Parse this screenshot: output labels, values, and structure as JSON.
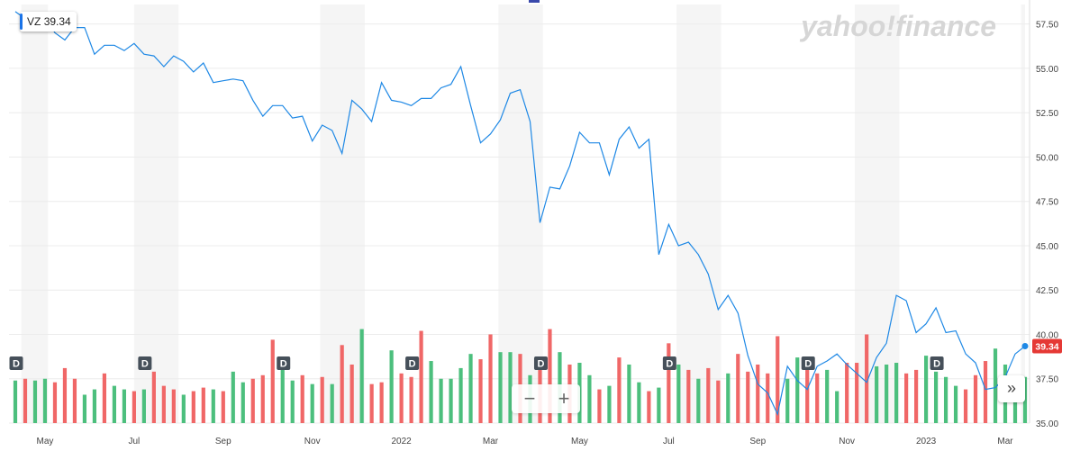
{
  "ticker": {
    "symbol": "VZ",
    "value": "39.34"
  },
  "watermark": "yahoo!finance",
  "last_price_label": "39.34",
  "controls": {
    "zoom_out": "−",
    "zoom_in": "+",
    "scroll": "»"
  },
  "dividend_marker": "D",
  "colors": {
    "line": "#1e88e5",
    "volume_up": "#4cbf7d",
    "volume_down": "#f06767",
    "price_tag": "#e53935",
    "band": "#f5f5f5"
  },
  "chart_data": {
    "type": "line",
    "title": "",
    "xlabel": "",
    "ylabel": "",
    "ylim": [
      35.0,
      58.6
    ],
    "grid": true,
    "y_ticks": [
      "57.50",
      "55.00",
      "52.50",
      "50.00",
      "47.50",
      "45.00",
      "42.50",
      "40.00",
      "37.50",
      "35.00"
    ],
    "y_tick_values": [
      57.5,
      55.0,
      52.5,
      50.0,
      47.5,
      45.0,
      42.5,
      40.0,
      37.5,
      35.0
    ],
    "x_ticks": [
      "May",
      "Jul",
      "Sep",
      "Nov",
      "2022",
      "Mar",
      "May",
      "Jul",
      "Sep",
      "Nov",
      "2023",
      "Mar"
    ],
    "x_tick_index": [
      3,
      12,
      21,
      30,
      39,
      48,
      57,
      66,
      75,
      84,
      92,
      100
    ],
    "series": [
      {
        "values": [
          58.2,
          57.8,
          58.1,
          57.9,
          57.0,
          56.6,
          57.3,
          57.3,
          55.8,
          56.3,
          56.3,
          56.0,
          56.4,
          55.8,
          55.7,
          55.1,
          55.7,
          55.4,
          54.8,
          55.3,
          54.2,
          54.3,
          54.4,
          54.3,
          53.2,
          52.3,
          52.9,
          52.9,
          52.2,
          52.3,
          50.9,
          51.8,
          51.5,
          50.2,
          53.2,
          52.7,
          52.0,
          54.2,
          53.2,
          53.1,
          52.9,
          53.3,
          53.3,
          53.9,
          54.1,
          55.1,
          52.9,
          50.8,
          51.3,
          52.1,
          53.6,
          53.8,
          52.0,
          46.3,
          48.3,
          48.2,
          49.5,
          51.4,
          50.8,
          50.8,
          49.0,
          51.0,
          51.7,
          50.5,
          51.0,
          44.5,
          46.2,
          45.0,
          45.2,
          44.5,
          43.4,
          41.4,
          42.2,
          41.2,
          38.8,
          37.2,
          36.7,
          35.5,
          38.2,
          37.4,
          36.9,
          38.2,
          38.5,
          38.9,
          38.3,
          37.8,
          37.3,
          38.7,
          39.5,
          42.2,
          41.9,
          40.1,
          40.6,
          41.5,
          40.1,
          40.2,
          38.9,
          38.4,
          36.9,
          37.0,
          37.6,
          38.9,
          39.34
        ]
      }
    ],
    "volume": [
      {
        "v": 37.4,
        "up": true
      },
      {
        "v": 37.5,
        "up": false
      },
      {
        "v": 37.4,
        "up": true
      },
      {
        "v": 37.5,
        "up": true
      },
      {
        "v": 37.3,
        "up": false
      },
      {
        "v": 38.1,
        "up": false
      },
      {
        "v": 37.5,
        "up": false
      },
      {
        "v": 36.6,
        "up": true
      },
      {
        "v": 36.9,
        "up": true
      },
      {
        "v": 37.8,
        "up": false
      },
      {
        "v": 37.1,
        "up": true
      },
      {
        "v": 36.9,
        "up": true
      },
      {
        "v": 36.8,
        "up": false
      },
      {
        "v": 36.9,
        "up": true
      },
      {
        "v": 37.9,
        "up": false
      },
      {
        "v": 37.1,
        "up": false
      },
      {
        "v": 36.9,
        "up": false
      },
      {
        "v": 36.6,
        "up": true
      },
      {
        "v": 36.8,
        "up": false
      },
      {
        "v": 37.0,
        "up": false
      },
      {
        "v": 36.9,
        "up": true
      },
      {
        "v": 36.8,
        "up": false
      },
      {
        "v": 37.9,
        "up": true
      },
      {
        "v": 37.3,
        "up": true
      },
      {
        "v": 37.5,
        "up": false
      },
      {
        "v": 37.7,
        "up": false
      },
      {
        "v": 39.7,
        "up": false
      },
      {
        "v": 38.0,
        "up": true
      },
      {
        "v": 37.4,
        "up": true
      },
      {
        "v": 37.7,
        "up": false
      },
      {
        "v": 37.2,
        "up": true
      },
      {
        "v": 37.6,
        "up": false
      },
      {
        "v": 37.2,
        "up": true
      },
      {
        "v": 39.4,
        "up": false
      },
      {
        "v": 38.3,
        "up": false
      },
      {
        "v": 40.3,
        "up": true
      },
      {
        "v": 37.2,
        "up": false
      },
      {
        "v": 37.3,
        "up": false
      },
      {
        "v": 39.1,
        "up": true
      },
      {
        "v": 37.8,
        "up": false
      },
      {
        "v": 37.6,
        "up": false
      },
      {
        "v": 40.2,
        "up": false
      },
      {
        "v": 38.5,
        "up": true
      },
      {
        "v": 37.5,
        "up": true
      },
      {
        "v": 37.5,
        "up": true
      },
      {
        "v": 38.1,
        "up": true
      },
      {
        "v": 38.9,
        "up": true
      },
      {
        "v": 38.6,
        "up": false
      },
      {
        "v": 40.0,
        "up": false
      },
      {
        "v": 39.0,
        "up": true
      },
      {
        "v": 39.0,
        "up": true
      },
      {
        "v": 38.9,
        "up": false
      },
      {
        "v": 37.7,
        "up": true
      },
      {
        "v": 38.7,
        "up": false
      },
      {
        "v": 40.3,
        "up": false
      },
      {
        "v": 39.0,
        "up": true
      },
      {
        "v": 38.3,
        "up": false
      },
      {
        "v": 38.4,
        "up": true
      },
      {
        "v": 37.7,
        "up": true
      },
      {
        "v": 36.9,
        "up": false
      },
      {
        "v": 37.1,
        "up": true
      },
      {
        "v": 38.7,
        "up": false
      },
      {
        "v": 38.3,
        "up": true
      },
      {
        "v": 37.3,
        "up": true
      },
      {
        "v": 36.8,
        "up": false
      },
      {
        "v": 37.0,
        "up": true
      },
      {
        "v": 39.5,
        "up": false
      },
      {
        "v": 38.3,
        "up": true
      },
      {
        "v": 38.0,
        "up": false
      },
      {
        "v": 37.5,
        "up": true
      },
      {
        "v": 38.1,
        "up": false
      },
      {
        "v": 37.4,
        "up": false
      },
      {
        "v": 37.8,
        "up": true
      },
      {
        "v": 38.9,
        "up": false
      },
      {
        "v": 37.9,
        "up": false
      },
      {
        "v": 38.3,
        "up": false
      },
      {
        "v": 37.8,
        "up": false
      },
      {
        "v": 39.9,
        "up": false
      },
      {
        "v": 37.5,
        "up": true
      },
      {
        "v": 38.7,
        "up": true
      },
      {
        "v": 38.6,
        "up": false
      },
      {
        "v": 37.8,
        "up": false
      },
      {
        "v": 38.0,
        "up": true
      },
      {
        "v": 36.8,
        "up": true
      },
      {
        "v": 38.4,
        "up": false
      },
      {
        "v": 38.4,
        "up": false
      },
      {
        "v": 40.0,
        "up": false
      },
      {
        "v": 38.2,
        "up": true
      },
      {
        "v": 38.3,
        "up": true
      },
      {
        "v": 38.4,
        "up": true
      },
      {
        "v": 37.8,
        "up": false
      },
      {
        "v": 38.0,
        "up": false
      },
      {
        "v": 38.8,
        "up": true
      },
      {
        "v": 37.9,
        "up": true
      },
      {
        "v": 37.6,
        "up": true
      },
      {
        "v": 37.1,
        "up": true
      },
      {
        "v": 36.9,
        "up": false
      },
      {
        "v": 37.7,
        "up": false
      },
      {
        "v": 38.5,
        "up": false
      },
      {
        "v": 39.2,
        "up": true
      },
      {
        "v": 38.3,
        "up": true
      },
      {
        "v": 37.2,
        "up": true
      },
      {
        "v": 37.6,
        "up": true
      }
    ],
    "dividends_index": [
      0,
      13,
      27,
      40,
      53,
      66,
      80,
      93
    ],
    "shaded_bands": [
      [
        0.6,
        3.3
      ],
      [
        12.0,
        16.5
      ],
      [
        30.8,
        35.3
      ],
      [
        48.8,
        53.3
      ],
      [
        66.8,
        71.3
      ],
      [
        84.8,
        89.3
      ],
      [
        101.6,
        102.0
      ]
    ],
    "legend": "none"
  }
}
